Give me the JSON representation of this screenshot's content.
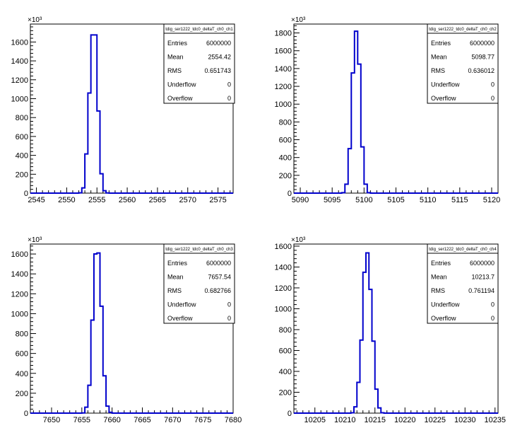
{
  "chart_data": [
    {
      "type": "bar",
      "title": "tdig_ser1222_tdc0_deltaT_ch0_ch1",
      "xlim": [
        2544,
        2577.5
      ],
      "ylim": [
        0,
        1790
      ],
      "y_multiplier_label": "×10³",
      "xticks": [
        2545,
        2550,
        2555,
        2560,
        2565,
        2570,
        2575
      ],
      "yticks": [
        0,
        200,
        400,
        600,
        800,
        1000,
        1200,
        1400,
        1600
      ],
      "bin_width": 0.5,
      "bins": [
        {
          "x": 2552.0,
          "y": 3
        },
        {
          "x": 2552.5,
          "y": 55
        },
        {
          "x": 2553.0,
          "y": 415
        },
        {
          "x": 2553.5,
          "y": 1060
        },
        {
          "x": 2554.0,
          "y": 1675
        },
        {
          "x": 2554.5,
          "y": 1675
        },
        {
          "x": 2555.0,
          "y": 870
        },
        {
          "x": 2555.5,
          "y": 205
        },
        {
          "x": 2556.0,
          "y": 25
        },
        {
          "x": 2556.5,
          "y": 2
        }
      ],
      "stats": [
        {
          "label": "Entries",
          "value": "6000000"
        },
        {
          "label": "Mean",
          "value": "2554.42"
        },
        {
          "label": "RMS",
          "value": "0.651743"
        },
        {
          "label": "Underflow",
          "value": "0"
        },
        {
          "label": "Overflow",
          "value": "0"
        }
      ]
    },
    {
      "type": "bar",
      "title": "tdig_ser1222_tdc0_deltaT_ch0_ch2",
      "xlim": [
        5089,
        5121
      ],
      "ylim": [
        0,
        1900
      ],
      "y_multiplier_label": "×10³",
      "xticks": [
        5090,
        5095,
        5100,
        5105,
        5110,
        5115,
        5120
      ],
      "yticks": [
        0,
        200,
        400,
        600,
        800,
        1000,
        1200,
        1400,
        1600,
        1800
      ],
      "bin_width": 0.5,
      "bins": [
        {
          "x": 5096.5,
          "y": 5
        },
        {
          "x": 5097.0,
          "y": 100
        },
        {
          "x": 5097.5,
          "y": 500
        },
        {
          "x": 5098.0,
          "y": 1350
        },
        {
          "x": 5098.5,
          "y": 1820
        },
        {
          "x": 5099.0,
          "y": 1450
        },
        {
          "x": 5099.5,
          "y": 520
        },
        {
          "x": 5100.0,
          "y": 100
        },
        {
          "x": 5100.5,
          "y": 5
        }
      ],
      "stats": [
        {
          "label": "Entries",
          "value": "6000000"
        },
        {
          "label": "Mean",
          "value": "5098.77"
        },
        {
          "label": "RMS",
          "value": "0.636012"
        },
        {
          "label": "Underflow",
          "value": "0"
        },
        {
          "label": "Overflow",
          "value": "0"
        }
      ]
    },
    {
      "type": "bar",
      "title": "tdig_ser1222_tdc0_deltaT_ch0_ch3",
      "xlim": [
        7646.5,
        7680
      ],
      "ylim": [
        0,
        1700
      ],
      "y_multiplier_label": "×10³",
      "xticks": [
        7650,
        7655,
        7660,
        7665,
        7670,
        7675,
        7680
      ],
      "yticks": [
        0,
        200,
        400,
        600,
        800,
        1000,
        1200,
        1400,
        1600
      ],
      "bin_width": 0.5,
      "bins": [
        {
          "x": 7655.0,
          "y": 2
        },
        {
          "x": 7655.5,
          "y": 60
        },
        {
          "x": 7656.0,
          "y": 280
        },
        {
          "x": 7656.5,
          "y": 935
        },
        {
          "x": 7657.0,
          "y": 1600
        },
        {
          "x": 7657.5,
          "y": 1610
        },
        {
          "x": 7658.0,
          "y": 1075
        },
        {
          "x": 7658.5,
          "y": 375
        },
        {
          "x": 7659.0,
          "y": 70
        },
        {
          "x": 7659.5,
          "y": 8
        }
      ],
      "stats": [
        {
          "label": "Entries",
          "value": "6000000"
        },
        {
          "label": "Mean",
          "value": "7657.54"
        },
        {
          "label": "RMS",
          "value": "0.682766"
        },
        {
          "label": "Underflow",
          "value": "0"
        },
        {
          "label": "Overflow",
          "value": "0"
        }
      ]
    },
    {
      "type": "bar",
      "title": "tdig_ser1222_tdc0_deltaT_ch0_ch4",
      "xlim": [
        10201.5,
        10235.5
      ],
      "ylim": [
        0,
        1620
      ],
      "y_multiplier_label": "×10³",
      "xticks": [
        10205,
        10210,
        10215,
        10220,
        10225,
        10230,
        10235
      ],
      "yticks": [
        0,
        200,
        400,
        600,
        800,
        1000,
        1200,
        1400,
        1600
      ],
      "bin_width": 0.5,
      "bins": [
        {
          "x": 10211.0,
          "y": 3
        },
        {
          "x": 10211.5,
          "y": 60
        },
        {
          "x": 10212.0,
          "y": 295
        },
        {
          "x": 10212.5,
          "y": 700
        },
        {
          "x": 10213.0,
          "y": 1350
        },
        {
          "x": 10213.5,
          "y": 1535
        },
        {
          "x": 10214.0,
          "y": 1185
        },
        {
          "x": 10214.5,
          "y": 690
        },
        {
          "x": 10215.0,
          "y": 230
        },
        {
          "x": 10215.5,
          "y": 50
        },
        {
          "x": 10216.0,
          "y": 3
        }
      ],
      "stats": [
        {
          "label": "Entries",
          "value": "6000000"
        },
        {
          "label": "Mean",
          "value": "10213.7"
        },
        {
          "label": "RMS",
          "value": "0.761194"
        },
        {
          "label": "Underflow",
          "value": "0"
        },
        {
          "label": "Overflow",
          "value": "0"
        }
      ]
    }
  ]
}
